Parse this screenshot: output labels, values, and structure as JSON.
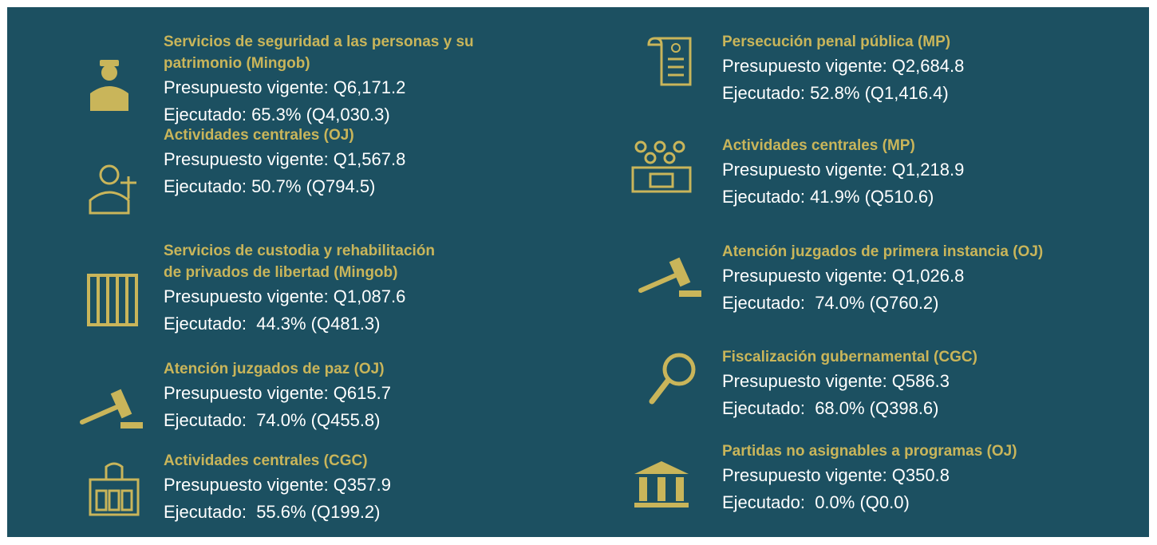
{
  "columns": [
    {
      "items": [
        {
          "title_lines": [
            "Servicios de seguridad a las personas y su",
            "patrimonio (Mingob)"
          ],
          "budget": "Presupuesto vigente: Q6,171.2",
          "executed": "Ejecutado: 65.3% (Q4,030.3)"
        },
        {
          "title_lines": [
            "Actividades centrales (OJ)"
          ],
          "budget": "Presupuesto vigente: Q1,567.8",
          "executed": "Ejecutado: 50.7% (Q794.5)"
        },
        {
          "title_lines": [
            "Servicios de custodia y rehabilitación",
            "de privados de libertad (Mingob)"
          ],
          "budget": "Presupuesto vigente: Q1,087.6",
          "executed": "Ejecutado:  44.3% (Q481.3)"
        },
        {
          "title_lines": [
            "Atención juzgados de paz (OJ)"
          ],
          "budget": "Presupuesto vigente: Q615.7",
          "executed": "Ejecutado:  74.0% (Q455.8)"
        },
        {
          "title_lines": [
            "Actividades centrales (CGC)"
          ],
          "budget": "Presupuesto vigente: Q357.9",
          "executed": "Ejecutado:  55.6% (Q199.2)"
        }
      ]
    },
    {
      "items": [
        {
          "title_lines": [
            "Persecución penal pública (MP)"
          ],
          "budget": "Presupuesto vigente: Q2,684.8",
          "executed": "Ejecutado: 52.8% (Q1,416.4)"
        },
        {
          "title_lines": [
            "Actividades centrales (MP)"
          ],
          "budget": "Presupuesto vigente: Q1,218.9",
          "executed": "Ejecutado: 41.9% (Q510.6)"
        },
        {
          "title_lines": [
            "Atención juzgados de primera instancia (OJ)"
          ],
          "budget": "Presupuesto vigente: Q1,026.8",
          "executed": "Ejecutado:  74.0% (Q760.2)"
        },
        {
          "title_lines": [
            "Fiscalización gubernamental (CGC)"
          ],
          "budget": "Presupuesto vigente: Q586.3",
          "executed": "Ejecutado:  68.0% (Q398.6)"
        },
        {
          "title_lines": [
            "Partidas no asignables a programas (OJ)"
          ],
          "budget": "Presupuesto vigente: Q350.8",
          "executed": "Ejecutado:  0.0% (Q0.0)"
        }
      ]
    }
  ]
}
